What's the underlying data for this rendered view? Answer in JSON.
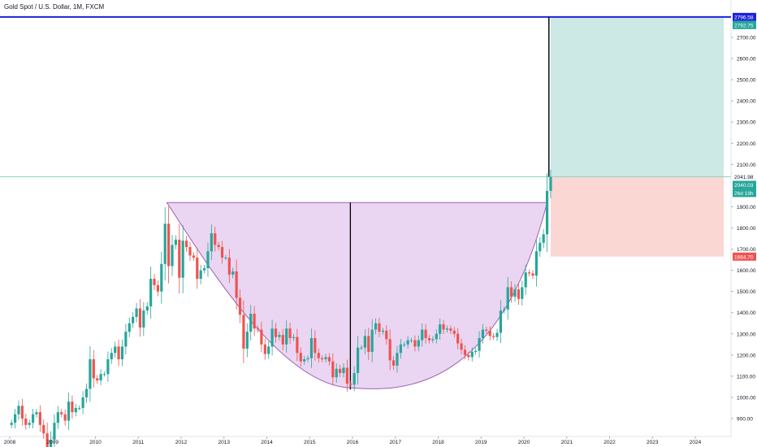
{
  "header": {
    "title": "Gold Spot / U.S. Dollar, 1M, FXCM"
  },
  "colors": {
    "up": "#26a69a",
    "down": "#ef5350",
    "cup_fill": "#e6cff0",
    "cup_stroke": "#9c5fb5",
    "target_zone": "#cce9e6",
    "stop_zone": "#fbd7d4",
    "target_line": "#1e22d8",
    "entry_line": "#8fd3c7",
    "axis_text": "#131722"
  },
  "chart_data": {
    "type": "candlestick",
    "title": "Gold Spot / U.S. Dollar, 1M, FXCM",
    "x_tick_labels": [
      "2008",
      "2009",
      "2010",
      "2011",
      "2012",
      "2013",
      "2014",
      "2015",
      "2016",
      "2017",
      "2018",
      "2019",
      "2020",
      "2021",
      "2022",
      "2023",
      "2024"
    ],
    "y_tick_labels": [
      "900.00",
      "1000.00",
      "1100.00",
      "1200.00",
      "1300.00",
      "1400.00",
      "1500.00",
      "1600.00",
      "1700.00",
      "1800.00",
      "1900.00",
      "2100.00",
      "2200.00",
      "2300.00",
      "2400.00",
      "2500.00",
      "2600.00",
      "2700.00"
    ],
    "y_range": [
      840,
      2810
    ],
    "x_range": [
      "2007-11",
      "2025-02"
    ],
    "yearly_closes": [
      {
        "year": 2008,
        "values": [
          880,
          920,
          960,
          900,
          870,
          880,
          920,
          930,
          870,
          830,
          720,
          800
        ]
      },
      {
        "year": 2009,
        "values": [
          880,
          930,
          920,
          890,
          980,
          930,
          950,
          950,
          1000,
          1040,
          1180,
          1090
        ]
      },
      {
        "year": 2010,
        "values": [
          1080,
          1110,
          1110,
          1180,
          1210,
          1240,
          1180,
          1240,
          1310,
          1350,
          1380,
          1420
        ]
      },
      {
        "year": 2011,
        "values": [
          1330,
          1410,
          1430,
          1560,
          1530,
          1500,
          1630,
          1820,
          1620,
          1720,
          1745,
          1565
        ]
      },
      {
        "year": 2012,
        "values": [
          1740,
          1710,
          1670,
          1660,
          1560,
          1600,
          1610,
          1690,
          1775,
          1720,
          1710,
          1660
        ]
      },
      {
        "year": 2013,
        "values": [
          1660,
          1580,
          1595,
          1470,
          1390,
          1230,
          1310,
          1395,
          1325,
          1320,
          1250,
          1205
        ]
      },
      {
        "year": 2014,
        "values": [
          1240,
          1325,
          1285,
          1295,
          1250,
          1325,
          1280,
          1285,
          1210,
          1170,
          1180,
          1185
        ]
      },
      {
        "year": 2015,
        "values": [
          1280,
          1210,
          1185,
          1180,
          1190,
          1170,
          1095,
          1135,
          1115,
          1140,
          1065,
          1060
        ]
      },
      {
        "year": 2016,
        "values": [
          1115,
          1235,
          1235,
          1290,
          1215,
          1320,
          1350,
          1310,
          1315,
          1275,
          1175,
          1150
        ]
      },
      {
        "year": 2017,
        "values": [
          1210,
          1250,
          1250,
          1270,
          1270,
          1240,
          1270,
          1320,
          1280,
          1270,
          1275,
          1300
        ]
      },
      {
        "year": 2018,
        "values": [
          1345,
          1320,
          1325,
          1315,
          1300,
          1255,
          1225,
          1200,
          1190,
          1215,
          1220,
          1280
        ]
      },
      {
        "year": 2019,
        "values": [
          1320,
          1315,
          1290,
          1285,
          1305,
          1410,
          1415,
          1520,
          1475,
          1510,
          1465,
          1520
        ]
      },
      {
        "year": 2020,
        "values": [
          1590,
          1585,
          1575,
          1690,
          1730,
          1770,
          1975,
          2040
        ]
      }
    ],
    "annotations": {
      "cup_rim_price": 1920,
      "cup_bottom_price": 1045,
      "entry_price": "2041.98",
      "target_price": "2796.58",
      "stop_price": "1664.70",
      "current_price": "2040.03",
      "secondary_target": "2792.75",
      "countdown": "26d 19h"
    }
  }
}
